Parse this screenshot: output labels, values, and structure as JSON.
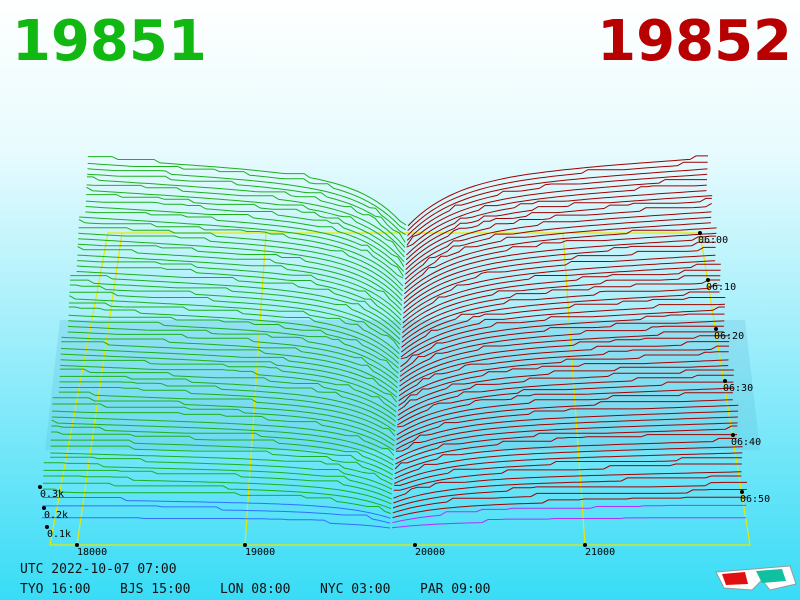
{
  "header": {
    "bid": "19851",
    "ask": "19852"
  },
  "price_axis": [
    "18000",
    "19000",
    "20000",
    "21000"
  ],
  "time_axis": [
    "06:00",
    "06:10",
    "06:20",
    "06:30",
    "06:40",
    "06:50"
  ],
  "depth_axis": [
    "0.3k",
    "0.2k",
    "0.1k"
  ],
  "clock": {
    "utc": "UTC 2022-10-07 07:00",
    "zones": [
      "TYO 16:00",
      "BJS 15:00",
      "LON 08:00",
      "NYC 03:00",
      "PAR 09:00"
    ]
  }
}
